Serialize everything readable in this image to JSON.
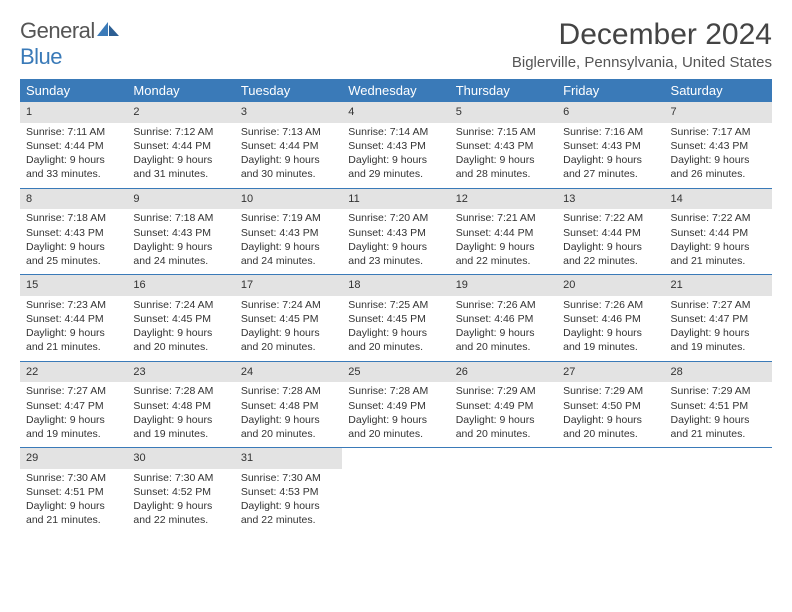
{
  "brand": {
    "part1": "General",
    "part2": "Blue"
  },
  "title": "December 2024",
  "location": "Biglerville, Pennsylvania, United States",
  "colors": {
    "header_bg": "#3a7ab8",
    "daynum_bg": "#e3e3e3",
    "row_border": "#3a7ab8",
    "text": "#333333",
    "background": "#ffffff"
  },
  "weekdays": [
    "Sunday",
    "Monday",
    "Tuesday",
    "Wednesday",
    "Thursday",
    "Friday",
    "Saturday"
  ],
  "weeks": [
    [
      {
        "n": "1",
        "sunrise": "Sunrise: 7:11 AM",
        "sunset": "Sunset: 4:44 PM",
        "dl1": "Daylight: 9 hours",
        "dl2": "and 33 minutes."
      },
      {
        "n": "2",
        "sunrise": "Sunrise: 7:12 AM",
        "sunset": "Sunset: 4:44 PM",
        "dl1": "Daylight: 9 hours",
        "dl2": "and 31 minutes."
      },
      {
        "n": "3",
        "sunrise": "Sunrise: 7:13 AM",
        "sunset": "Sunset: 4:44 PM",
        "dl1": "Daylight: 9 hours",
        "dl2": "and 30 minutes."
      },
      {
        "n": "4",
        "sunrise": "Sunrise: 7:14 AM",
        "sunset": "Sunset: 4:43 PM",
        "dl1": "Daylight: 9 hours",
        "dl2": "and 29 minutes."
      },
      {
        "n": "5",
        "sunrise": "Sunrise: 7:15 AM",
        "sunset": "Sunset: 4:43 PM",
        "dl1": "Daylight: 9 hours",
        "dl2": "and 28 minutes."
      },
      {
        "n": "6",
        "sunrise": "Sunrise: 7:16 AM",
        "sunset": "Sunset: 4:43 PM",
        "dl1": "Daylight: 9 hours",
        "dl2": "and 27 minutes."
      },
      {
        "n": "7",
        "sunrise": "Sunrise: 7:17 AM",
        "sunset": "Sunset: 4:43 PM",
        "dl1": "Daylight: 9 hours",
        "dl2": "and 26 minutes."
      }
    ],
    [
      {
        "n": "8",
        "sunrise": "Sunrise: 7:18 AM",
        "sunset": "Sunset: 4:43 PM",
        "dl1": "Daylight: 9 hours",
        "dl2": "and 25 minutes."
      },
      {
        "n": "9",
        "sunrise": "Sunrise: 7:18 AM",
        "sunset": "Sunset: 4:43 PM",
        "dl1": "Daylight: 9 hours",
        "dl2": "and 24 minutes."
      },
      {
        "n": "10",
        "sunrise": "Sunrise: 7:19 AM",
        "sunset": "Sunset: 4:43 PM",
        "dl1": "Daylight: 9 hours",
        "dl2": "and 24 minutes."
      },
      {
        "n": "11",
        "sunrise": "Sunrise: 7:20 AM",
        "sunset": "Sunset: 4:43 PM",
        "dl1": "Daylight: 9 hours",
        "dl2": "and 23 minutes."
      },
      {
        "n": "12",
        "sunrise": "Sunrise: 7:21 AM",
        "sunset": "Sunset: 4:44 PM",
        "dl1": "Daylight: 9 hours",
        "dl2": "and 22 minutes."
      },
      {
        "n": "13",
        "sunrise": "Sunrise: 7:22 AM",
        "sunset": "Sunset: 4:44 PM",
        "dl1": "Daylight: 9 hours",
        "dl2": "and 22 minutes."
      },
      {
        "n": "14",
        "sunrise": "Sunrise: 7:22 AM",
        "sunset": "Sunset: 4:44 PM",
        "dl1": "Daylight: 9 hours",
        "dl2": "and 21 minutes."
      }
    ],
    [
      {
        "n": "15",
        "sunrise": "Sunrise: 7:23 AM",
        "sunset": "Sunset: 4:44 PM",
        "dl1": "Daylight: 9 hours",
        "dl2": "and 21 minutes."
      },
      {
        "n": "16",
        "sunrise": "Sunrise: 7:24 AM",
        "sunset": "Sunset: 4:45 PM",
        "dl1": "Daylight: 9 hours",
        "dl2": "and 20 minutes."
      },
      {
        "n": "17",
        "sunrise": "Sunrise: 7:24 AM",
        "sunset": "Sunset: 4:45 PM",
        "dl1": "Daylight: 9 hours",
        "dl2": "and 20 minutes."
      },
      {
        "n": "18",
        "sunrise": "Sunrise: 7:25 AM",
        "sunset": "Sunset: 4:45 PM",
        "dl1": "Daylight: 9 hours",
        "dl2": "and 20 minutes."
      },
      {
        "n": "19",
        "sunrise": "Sunrise: 7:26 AM",
        "sunset": "Sunset: 4:46 PM",
        "dl1": "Daylight: 9 hours",
        "dl2": "and 20 minutes."
      },
      {
        "n": "20",
        "sunrise": "Sunrise: 7:26 AM",
        "sunset": "Sunset: 4:46 PM",
        "dl1": "Daylight: 9 hours",
        "dl2": "and 19 minutes."
      },
      {
        "n": "21",
        "sunrise": "Sunrise: 7:27 AM",
        "sunset": "Sunset: 4:47 PM",
        "dl1": "Daylight: 9 hours",
        "dl2": "and 19 minutes."
      }
    ],
    [
      {
        "n": "22",
        "sunrise": "Sunrise: 7:27 AM",
        "sunset": "Sunset: 4:47 PM",
        "dl1": "Daylight: 9 hours",
        "dl2": "and 19 minutes."
      },
      {
        "n": "23",
        "sunrise": "Sunrise: 7:28 AM",
        "sunset": "Sunset: 4:48 PM",
        "dl1": "Daylight: 9 hours",
        "dl2": "and 19 minutes."
      },
      {
        "n": "24",
        "sunrise": "Sunrise: 7:28 AM",
        "sunset": "Sunset: 4:48 PM",
        "dl1": "Daylight: 9 hours",
        "dl2": "and 20 minutes."
      },
      {
        "n": "25",
        "sunrise": "Sunrise: 7:28 AM",
        "sunset": "Sunset: 4:49 PM",
        "dl1": "Daylight: 9 hours",
        "dl2": "and 20 minutes."
      },
      {
        "n": "26",
        "sunrise": "Sunrise: 7:29 AM",
        "sunset": "Sunset: 4:49 PM",
        "dl1": "Daylight: 9 hours",
        "dl2": "and 20 minutes."
      },
      {
        "n": "27",
        "sunrise": "Sunrise: 7:29 AM",
        "sunset": "Sunset: 4:50 PM",
        "dl1": "Daylight: 9 hours",
        "dl2": "and 20 minutes."
      },
      {
        "n": "28",
        "sunrise": "Sunrise: 7:29 AM",
        "sunset": "Sunset: 4:51 PM",
        "dl1": "Daylight: 9 hours",
        "dl2": "and 21 minutes."
      }
    ],
    [
      {
        "n": "29",
        "sunrise": "Sunrise: 7:30 AM",
        "sunset": "Sunset: 4:51 PM",
        "dl1": "Daylight: 9 hours",
        "dl2": "and 21 minutes."
      },
      {
        "n": "30",
        "sunrise": "Sunrise: 7:30 AM",
        "sunset": "Sunset: 4:52 PM",
        "dl1": "Daylight: 9 hours",
        "dl2": "and 22 minutes."
      },
      {
        "n": "31",
        "sunrise": "Sunrise: 7:30 AM",
        "sunset": "Sunset: 4:53 PM",
        "dl1": "Daylight: 9 hours",
        "dl2": "and 22 minutes."
      },
      null,
      null,
      null,
      null
    ]
  ]
}
